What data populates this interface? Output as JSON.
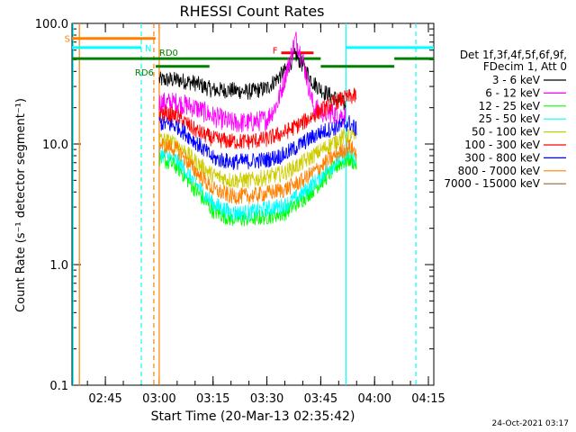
{
  "chart_data": {
    "type": "line",
    "title": "RHESSI Count Rates",
    "xlabel": "Start Time (20-Mar-13 02:35:42)",
    "ylabel": "Count Rate (s⁻¹ detector segment⁻¹)",
    "yscale": "log",
    "ylim": [
      0.1,
      100
    ],
    "xlim": [
      "02:35:42",
      "04:16:30"
    ],
    "x_ticks": [
      "02:45",
      "03:00",
      "03:15",
      "03:30",
      "03:45",
      "04:00",
      "04:15"
    ],
    "y_ticks": [
      "0.1",
      "1.0",
      "10.0",
      "100.0"
    ],
    "legend": {
      "position": "right",
      "header": [
        "Det 1f,3f,4f,5f,6f,9f,",
        "FDecim 1, Att 0"
      ]
    },
    "footer_date": "24-Oct-2021 03:17",
    "series": [
      {
        "name": "3 - 6 keV",
        "color": "#000000",
        "x": [
          "03:00",
          "03:05",
          "03:10",
          "03:15",
          "03:20",
          "03:25",
          "03:30",
          "03:35",
          "03:38",
          "03:40",
          "03:43",
          "03:46",
          "03:49",
          "03:52"
        ],
        "y": [
          34,
          34,
          32,
          28,
          28,
          27,
          29,
          40,
          55,
          45,
          32,
          27,
          24,
          21
        ]
      },
      {
        "name": "6 - 12 keV",
        "color": "#ff00ff",
        "x": [
          "03:00",
          "03:05",
          "03:10",
          "03:15",
          "03:20",
          "03:25",
          "03:30",
          "03:33",
          "03:36",
          "03:38",
          "03:40",
          "03:43",
          "03:46",
          "03:49",
          "03:52"
        ],
        "y": [
          22,
          22,
          20,
          17,
          15,
          15,
          16,
          22,
          45,
          75,
          50,
          20,
          18,
          18,
          17
        ]
      },
      {
        "name": "12 - 25 keV",
        "color": "#00ff00",
        "x": [
          "03:00",
          "03:05",
          "03:10",
          "03:15",
          "03:20",
          "03:25",
          "03:30",
          "03:35",
          "03:40",
          "03:45",
          "03:50",
          "03:53",
          "03:55"
        ],
        "y": [
          7.6,
          6.5,
          4.2,
          2.8,
          2.4,
          2.4,
          2.5,
          2.7,
          3.5,
          4.8,
          6.8,
          7.5,
          6.8
        ]
      },
      {
        "name": "25 - 50 keV",
        "color": "#00ffff",
        "x": [
          "03:00",
          "03:05",
          "03:10",
          "03:15",
          "03:20",
          "03:25",
          "03:30",
          "03:35",
          "03:40",
          "03:45",
          "03:50",
          "03:53",
          "03:55"
        ],
        "y": [
          8.4,
          7.3,
          4.8,
          3.2,
          2.7,
          2.7,
          2.9,
          3.1,
          3.9,
          5.4,
          7.4,
          8.2,
          7.5
        ]
      },
      {
        "name": "50 - 100 keV",
        "color": "#cccc00",
        "x": [
          "03:00",
          "03:05",
          "03:10",
          "03:15",
          "03:20",
          "03:25",
          "03:30",
          "03:35",
          "03:40",
          "03:45",
          "03:50",
          "03:53",
          "03:55"
        ],
        "y": [
          11,
          10,
          7.2,
          5.5,
          5.0,
          5.0,
          5.3,
          5.8,
          7.0,
          8.8,
          11,
          12,
          11
        ]
      },
      {
        "name": "100 - 300 keV",
        "color": "#ff0000",
        "x": [
          "03:00",
          "03:05",
          "03:10",
          "03:15",
          "03:20",
          "03:25",
          "03:30",
          "03:35",
          "03:40",
          "03:45",
          "03:50",
          "03:53",
          "03:55"
        ],
        "y": [
          18,
          17,
          13,
          11,
          10.5,
          10.5,
          11,
          12.5,
          15,
          19,
          23,
          24.5,
          25
        ]
      },
      {
        "name": "300 - 800 keV",
        "color": "#0000ff",
        "x": [
          "03:00",
          "03:05",
          "03:10",
          "03:15",
          "03:20",
          "03:25",
          "03:30",
          "03:35",
          "03:40",
          "03:45",
          "03:50",
          "03:53",
          "03:55"
        ],
        "y": [
          15,
          14,
          10.5,
          7.6,
          7.1,
          7.2,
          7.4,
          8.2,
          10.2,
          12.5,
          14,
          15,
          13
        ]
      },
      {
        "name": "800 - 7000 keV",
        "color": "#ff8000",
        "x": [
          "03:00",
          "03:05",
          "03:10",
          "03:15",
          "03:20",
          "03:25",
          "03:30",
          "03:35",
          "03:40",
          "03:45",
          "03:50",
          "03:53",
          "03:55"
        ],
        "y": [
          10,
          9,
          6,
          4.2,
          3.7,
          3.7,
          3.9,
          4.2,
          5,
          6.5,
          8.5,
          9.5,
          8.5
        ]
      },
      {
        "name": "7000 - 15000 keV",
        "color": "#996633",
        "x": [],
        "y": []
      }
    ],
    "annotations": {
      "vlines": [
        {
          "t": "02:36:00",
          "color": "#00ffff",
          "style": "solid"
        },
        {
          "t": "02:37:45",
          "color": "#ff8000",
          "style": "solid"
        },
        {
          "t": "02:55:00",
          "color": "#00ffff",
          "style": "dashed"
        },
        {
          "t": "02:58:30",
          "color": "#ff8000",
          "style": "dashed"
        },
        {
          "t": "03:00:00",
          "color": "#ff8000",
          "style": "solid"
        },
        {
          "t": "03:52:00",
          "color": "#00ffff",
          "style": "solid"
        },
        {
          "t": "04:11:30",
          "color": "#00ffff",
          "style": "dashed"
        }
      ],
      "bars": [
        {
          "label": "S",
          "color": "#ff8000",
          "from": "02:35:42",
          "to": "02:59:00",
          "y": 75
        },
        {
          "label": "N",
          "color": "#00ffff",
          "from": "02:35:42",
          "to": "02:55:00",
          "y": 63
        },
        {
          "label": "",
          "color": "#00ffff",
          "from": "03:52:00",
          "to": "04:16:30",
          "y": 63
        },
        {
          "label": "RD0",
          "color": "#008000",
          "from": "02:35:42",
          "to": "03:45:00",
          "y": 51
        },
        {
          "label": "RD6",
          "color": "#008000",
          "from": "02:59:00",
          "to": "03:14:00",
          "y": 44
        },
        {
          "label": "",
          "color": "#008000",
          "from": "03:45:00",
          "to": "04:05:30",
          "y": 44
        },
        {
          "label": "",
          "color": "#008000",
          "from": "04:05:30",
          "to": "04:16:30",
          "y": 51
        },
        {
          "label": "F",
          "color": "#ff0000",
          "from": "03:34:00",
          "to": "03:43:00",
          "y": 57
        }
      ]
    }
  }
}
